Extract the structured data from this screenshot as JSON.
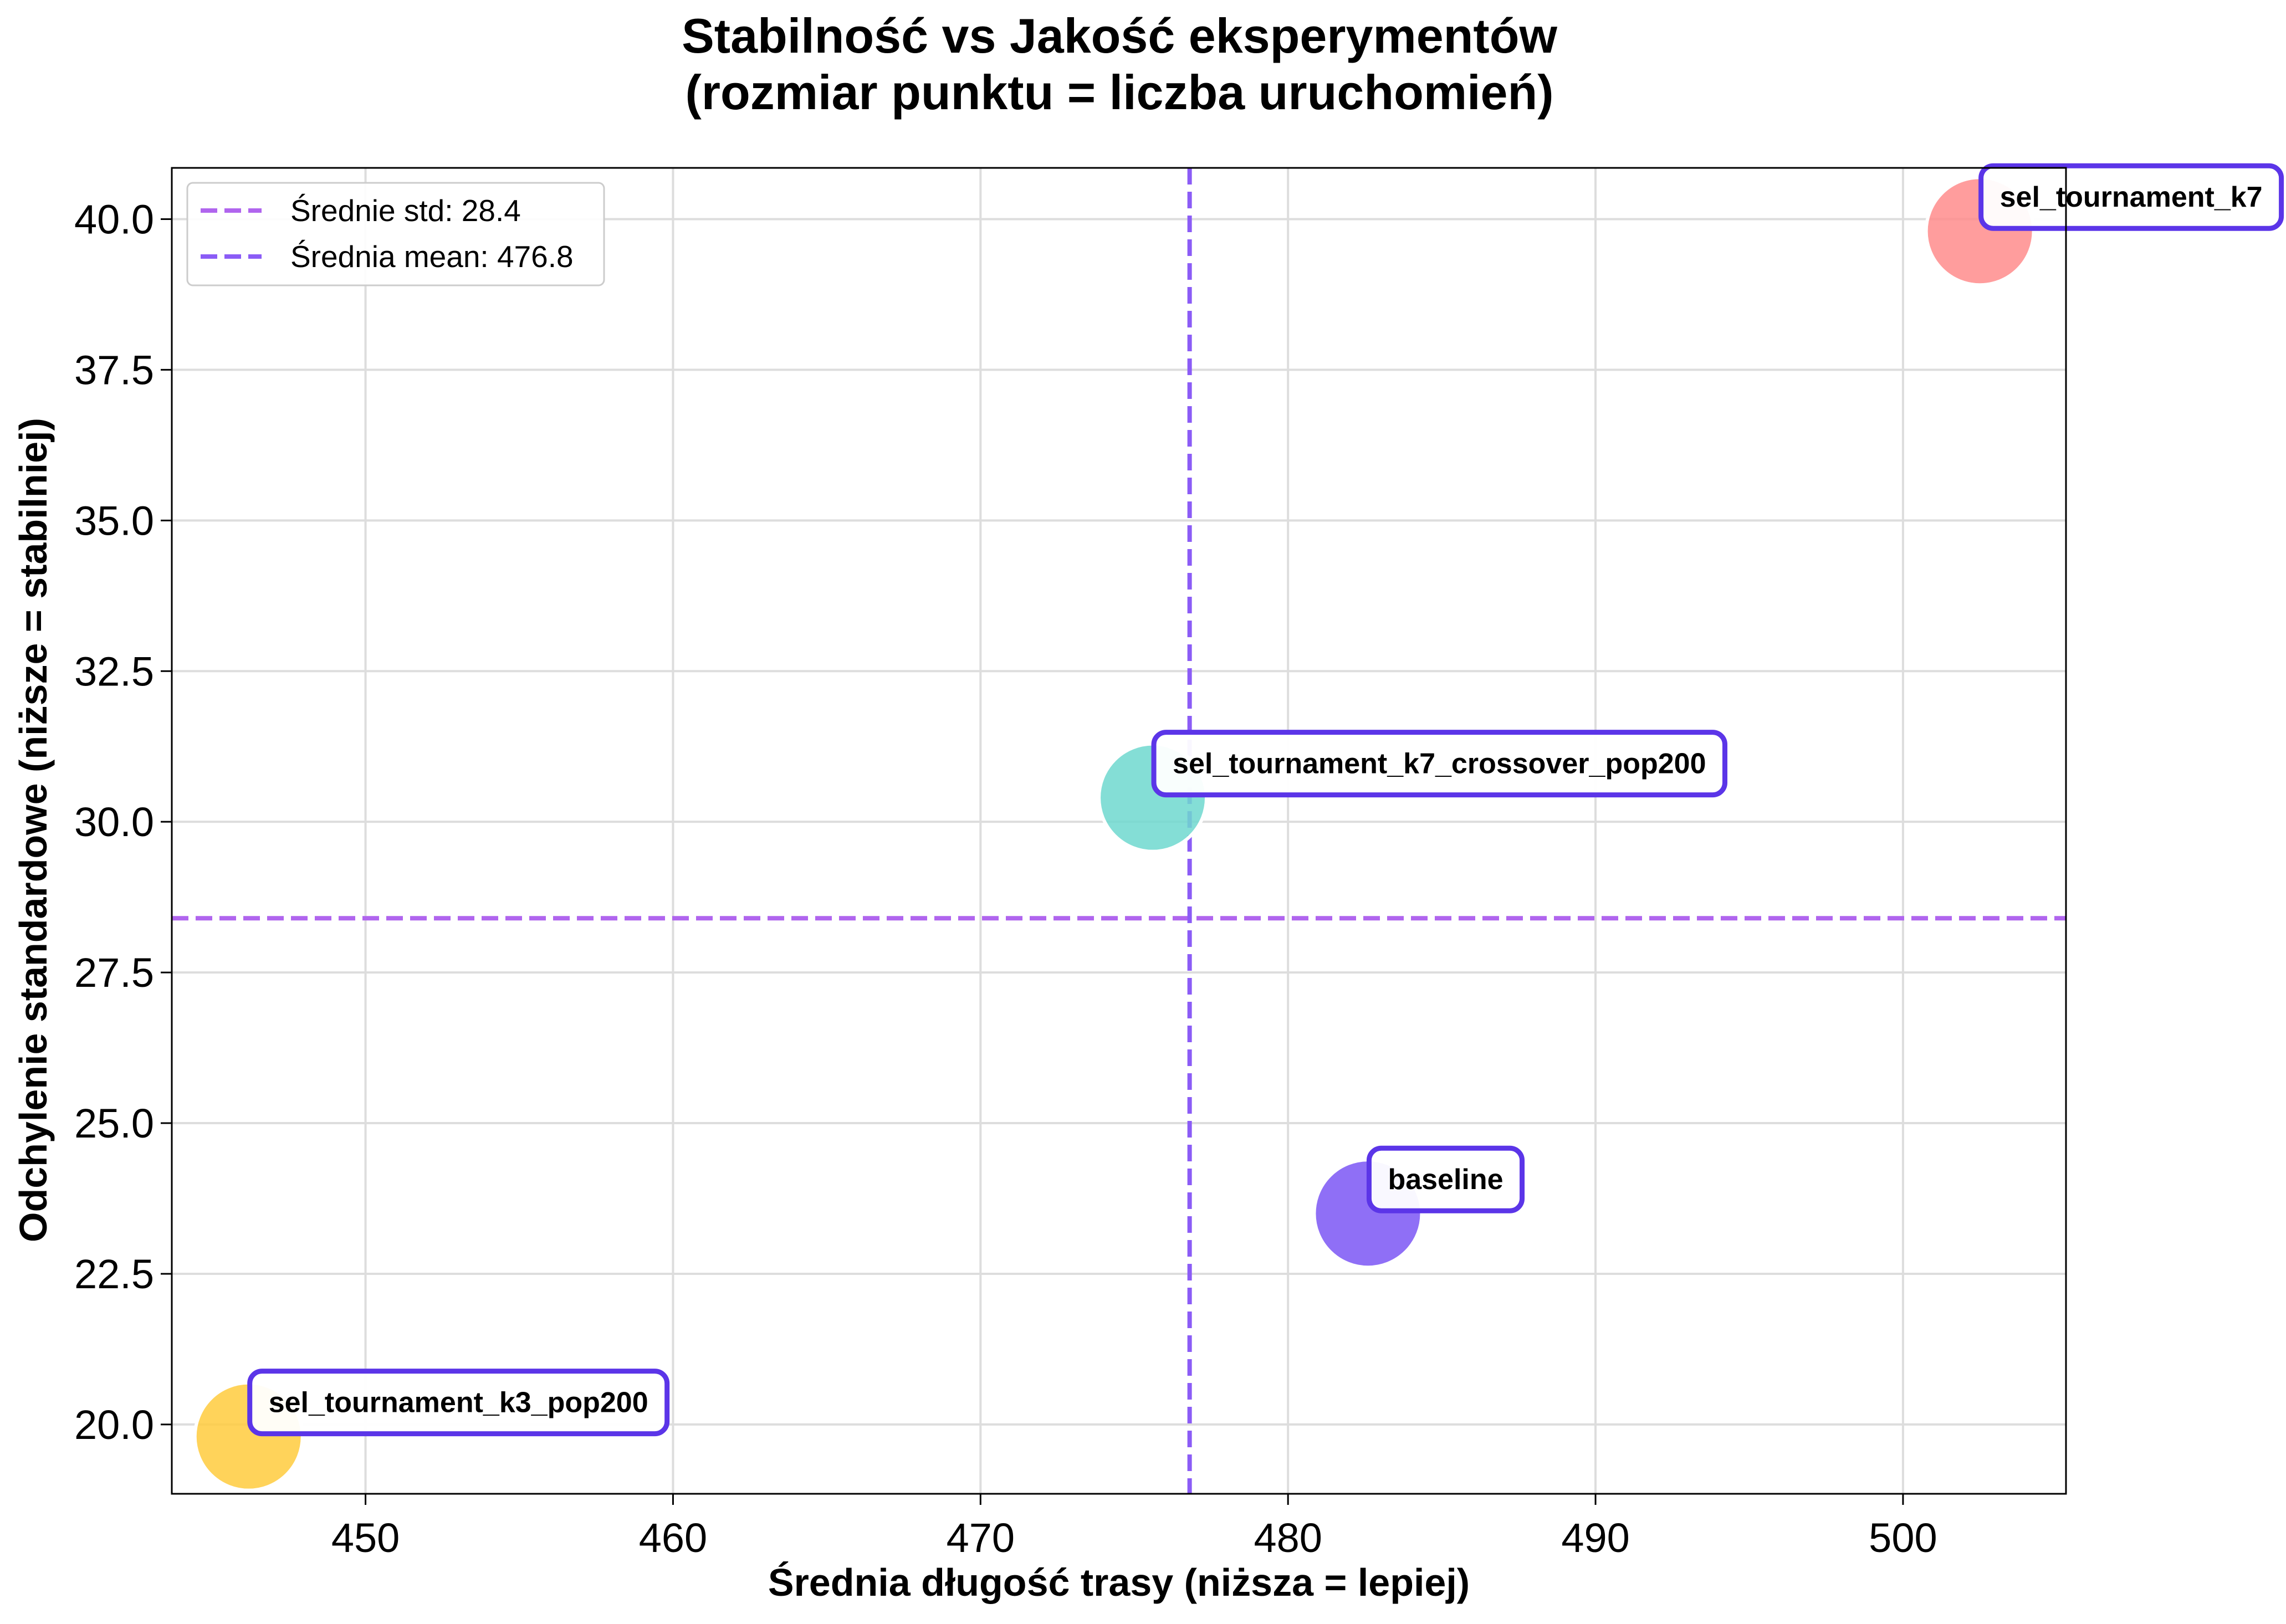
{
  "chart_data": {
    "type": "scatter",
    "title": "Stabilność vs Jakość eksperymentów",
    "subtitle": "(rozmiar punktu = liczba uruchomień)",
    "xlabel": "Średnia długość trasy (niższa = lepiej)",
    "ylabel": "Odchylenie standardowe (niższe = stabilniej)",
    "xlim": [
      443.7,
      505.3
    ],
    "ylim": [
      18.85,
      40.85
    ],
    "xticks": [
      450,
      460,
      470,
      480,
      490,
      500
    ],
    "yticks": [
      20.0,
      22.5,
      25.0,
      27.5,
      30.0,
      32.5,
      35.0,
      37.5,
      40.0
    ],
    "grid": true,
    "legend_position": "top-left",
    "reference_lines": [
      {
        "orientation": "horizontal",
        "value": 28.4,
        "label": "Średnie std: 28.4",
        "color": "#b065ee"
      },
      {
        "orientation": "vertical",
        "value": 476.8,
        "label": "Średnia mean: 476.8",
        "color": "#8b5cf6"
      }
    ],
    "points": [
      {
        "label": "sel_tournament_k7",
        "x": 502.5,
        "y": 39.8,
        "color": "#ff8c8c"
      },
      {
        "label": "sel_tournament_k7_crossover_pop200",
        "x": 475.6,
        "y": 30.4,
        "color": "#6fd8cf"
      },
      {
        "label": "baseline",
        "x": 482.6,
        "y": 23.5,
        "color": "#7b56f5"
      },
      {
        "label": "sel_tournament_k3_pop200",
        "x": 446.2,
        "y": 19.8,
        "color": "#ffcb3d"
      }
    ],
    "label_border_color": "#5b35e8"
  }
}
